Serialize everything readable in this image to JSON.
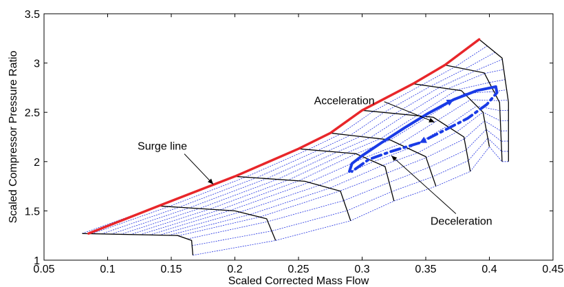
{
  "chart_data": {
    "type": "line",
    "xlabel": "Scaled Corrected Mass Flow",
    "ylabel": "Scaled Compressor Pressure Ratio",
    "xlim": [
      0.05,
      0.45
    ],
    "ylim": [
      1,
      3.5
    ],
    "xticks": [
      0.05,
      0.1,
      0.15,
      0.2,
      0.25,
      0.3,
      0.35,
      0.4,
      0.45
    ],
    "xtick_labels": [
      "0.05",
      "0.1",
      "0.15",
      "0.2",
      "0.25",
      "0.3",
      "0.35",
      "0.4",
      "0.45"
    ],
    "yticks": [
      1,
      1.5,
      2,
      2.5,
      3,
      3.5
    ],
    "ytick_labels": [
      "1",
      "1.5",
      "2",
      "2.5",
      "3",
      "3.5"
    ],
    "grid": false,
    "colors": {
      "surge": "#e8262a",
      "speed_lines": "#000000",
      "beta_lines": "#1f2fe0",
      "acceleration": "#1a3be6",
      "deceleration": "#1a3be6"
    },
    "series": [
      {
        "role": "surge-line",
        "style": "solid",
        "points": [
          [
            0.085,
            1.27
          ],
          [
            0.14,
            1.55
          ],
          [
            0.2,
            1.85
          ],
          [
            0.25,
            2.13
          ],
          [
            0.275,
            2.29
          ],
          [
            0.3,
            2.52
          ],
          [
            0.34,
            2.79
          ],
          [
            0.365,
            2.98
          ],
          [
            0.392,
            3.24
          ]
        ]
      },
      {
        "role": "acceleration-trajectory",
        "style": "solid",
        "points": [
          [
            0.29,
            1.9
          ],
          [
            0.292,
            1.98
          ],
          [
            0.3,
            2.06
          ],
          [
            0.315,
            2.19
          ],
          [
            0.333,
            2.34
          ],
          [
            0.352,
            2.49
          ],
          [
            0.372,
            2.63
          ],
          [
            0.39,
            2.72
          ],
          [
            0.405,
            2.76
          ]
        ]
      },
      {
        "role": "deceleration-trajectory",
        "style": "dashdot",
        "points": [
          [
            0.405,
            2.76
          ],
          [
            0.406,
            2.7
          ],
          [
            0.398,
            2.58
          ],
          [
            0.383,
            2.44
          ],
          [
            0.365,
            2.32
          ],
          [
            0.345,
            2.19
          ],
          [
            0.322,
            2.1
          ],
          [
            0.305,
            2.02
          ],
          [
            0.292,
            1.9
          ]
        ]
      }
    ],
    "speed_lines": [
      [
        [
          0.08,
          1.27
        ],
        [
          0.155,
          1.25
        ],
        [
          0.166,
          1.2
        ],
        [
          0.167,
          1.05
        ]
      ],
      [
        [
          0.14,
          1.55
        ],
        [
          0.2,
          1.5
        ],
        [
          0.225,
          1.42
        ],
        [
          0.232,
          1.2
        ]
      ],
      [
        [
          0.2,
          1.85
        ],
        [
          0.255,
          1.8
        ],
        [
          0.283,
          1.7
        ],
        [
          0.291,
          1.4
        ]
      ],
      [
        [
          0.25,
          2.13
        ],
        [
          0.295,
          2.08
        ],
        [
          0.318,
          1.95
        ],
        [
          0.325,
          1.6
        ]
      ],
      [
        [
          0.275,
          2.29
        ],
        [
          0.322,
          2.22
        ],
        [
          0.35,
          2.05
        ],
        [
          0.358,
          1.75
        ]
      ],
      [
        [
          0.3,
          2.52
        ],
        [
          0.356,
          2.45
        ],
        [
          0.38,
          2.25
        ],
        [
          0.385,
          1.9
        ]
      ],
      [
        [
          0.34,
          2.79
        ],
        [
          0.378,
          2.72
        ],
        [
          0.395,
          2.5
        ],
        [
          0.4,
          2.15
        ]
      ],
      [
        [
          0.365,
          2.98
        ],
        [
          0.396,
          2.9
        ],
        [
          0.408,
          2.6
        ],
        [
          0.41,
          2.0
        ]
      ],
      [
        [
          0.392,
          3.24
        ],
        [
          0.41,
          3.05
        ],
        [
          0.415,
          2.6
        ],
        [
          0.415,
          2.0
        ]
      ]
    ],
    "annotations": [
      {
        "text": "Surge line",
        "label_at": [
          0.143,
          2.12
        ],
        "arrow_to": [
          0.183,
          1.77
        ]
      },
      {
        "text": "Acceleration",
        "label_at": [
          0.286,
          2.58
        ],
        "arrow_to": [
          0.357,
          2.4
        ]
      },
      {
        "text": "Deceleration",
        "label_at": [
          0.378,
          1.36
        ],
        "arrow_to": [
          0.323,
          2.06
        ]
      }
    ]
  }
}
